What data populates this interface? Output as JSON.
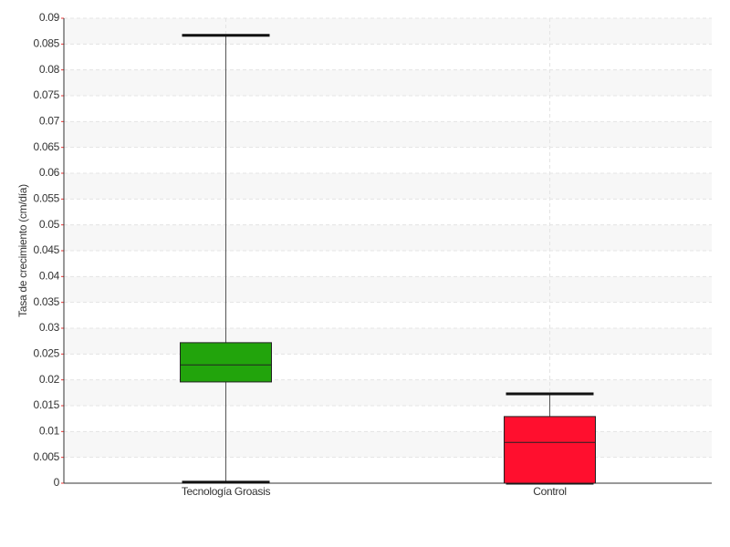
{
  "chart_data": {
    "type": "box",
    "y_label": "Tasa de crecimiento (cm/día)",
    "categories": [
      "Tecnología Groasis",
      "Control"
    ],
    "colors": [
      "#22a40c",
      "#ff0f2e"
    ],
    "min": [
      0.0002,
      0
    ],
    "q1": [
      0.0196,
      0
    ],
    "median": [
      0.0229,
      0.0079
    ],
    "q3": [
      0.0272,
      0.0129
    ],
    "max": [
      0.0867,
      0.0173
    ],
    "ylim": [
      0,
      0.09
    ],
    "yticks": [
      0,
      0.005,
      0.01,
      0.015,
      0.02,
      0.025,
      0.03,
      0.035,
      0.04,
      0.045,
      0.05,
      0.055,
      0.06,
      0.065,
      0.07,
      0.075,
      0.08,
      0.085,
      0.09
    ],
    "grid": true
  }
}
